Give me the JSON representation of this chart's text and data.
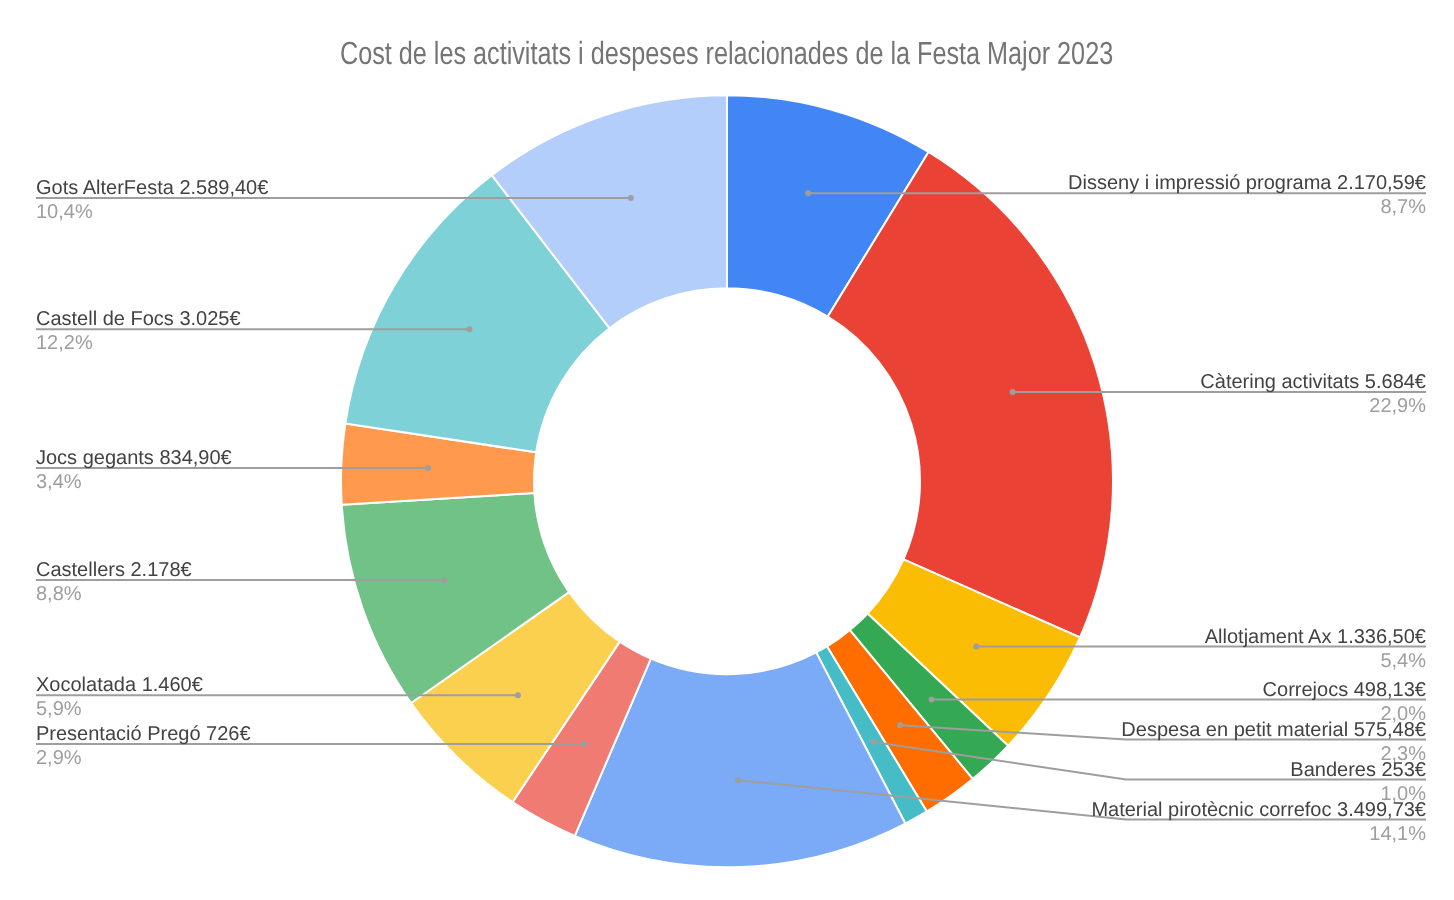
{
  "chart_data": {
    "type": "donut",
    "title": "Cost de les activitats i despeses relacionades de la Festa Major 2023",
    "categories": [
      "Disseny i impressió programa",
      "Càtering activitats",
      "Allotjament Ax",
      "Correjocs",
      "Despesa en petit material",
      "Banderes",
      "Material pirotècnic correfoc",
      "Presentació Pregó",
      "Xocolatada",
      "Castellers",
      "Jocs gegants",
      "Castell de Focs",
      "Gots AlterFesta"
    ],
    "values": [
      2170.59,
      5684,
      1336.5,
      498.13,
      575.48,
      253,
      3499.73,
      726,
      1460,
      2178,
      834.9,
      3025,
      2589.4
    ],
    "value_labels": [
      "2.170,59€\n8,7%",
      "5.684€\n22,9%",
      "1.336,50€\n5,4%",
      "498,13€\n2,0%",
      "575,48€\n2,3%",
      "253€\n1,0%",
      "3.499,73€\n14,1%",
      "726€\n2,9%",
      "1.460€\n5,9%",
      "2.178€\n8,8%",
      "834,90€\n3,4%",
      "3.025€\n12,2%",
      "2.589,40€\n10,4%"
    ],
    "colors": [
      "#4285f4",
      "#ea4335",
      "#fbbc04",
      "#34a853",
      "#ff6d01",
      "#46bdc6",
      "#7baaf7",
      "#f07b72",
      "#fcd04f",
      "#71c287",
      "#ff994d",
      "#7ed1d7",
      "#b3cefb"
    ],
    "legend": false
  }
}
